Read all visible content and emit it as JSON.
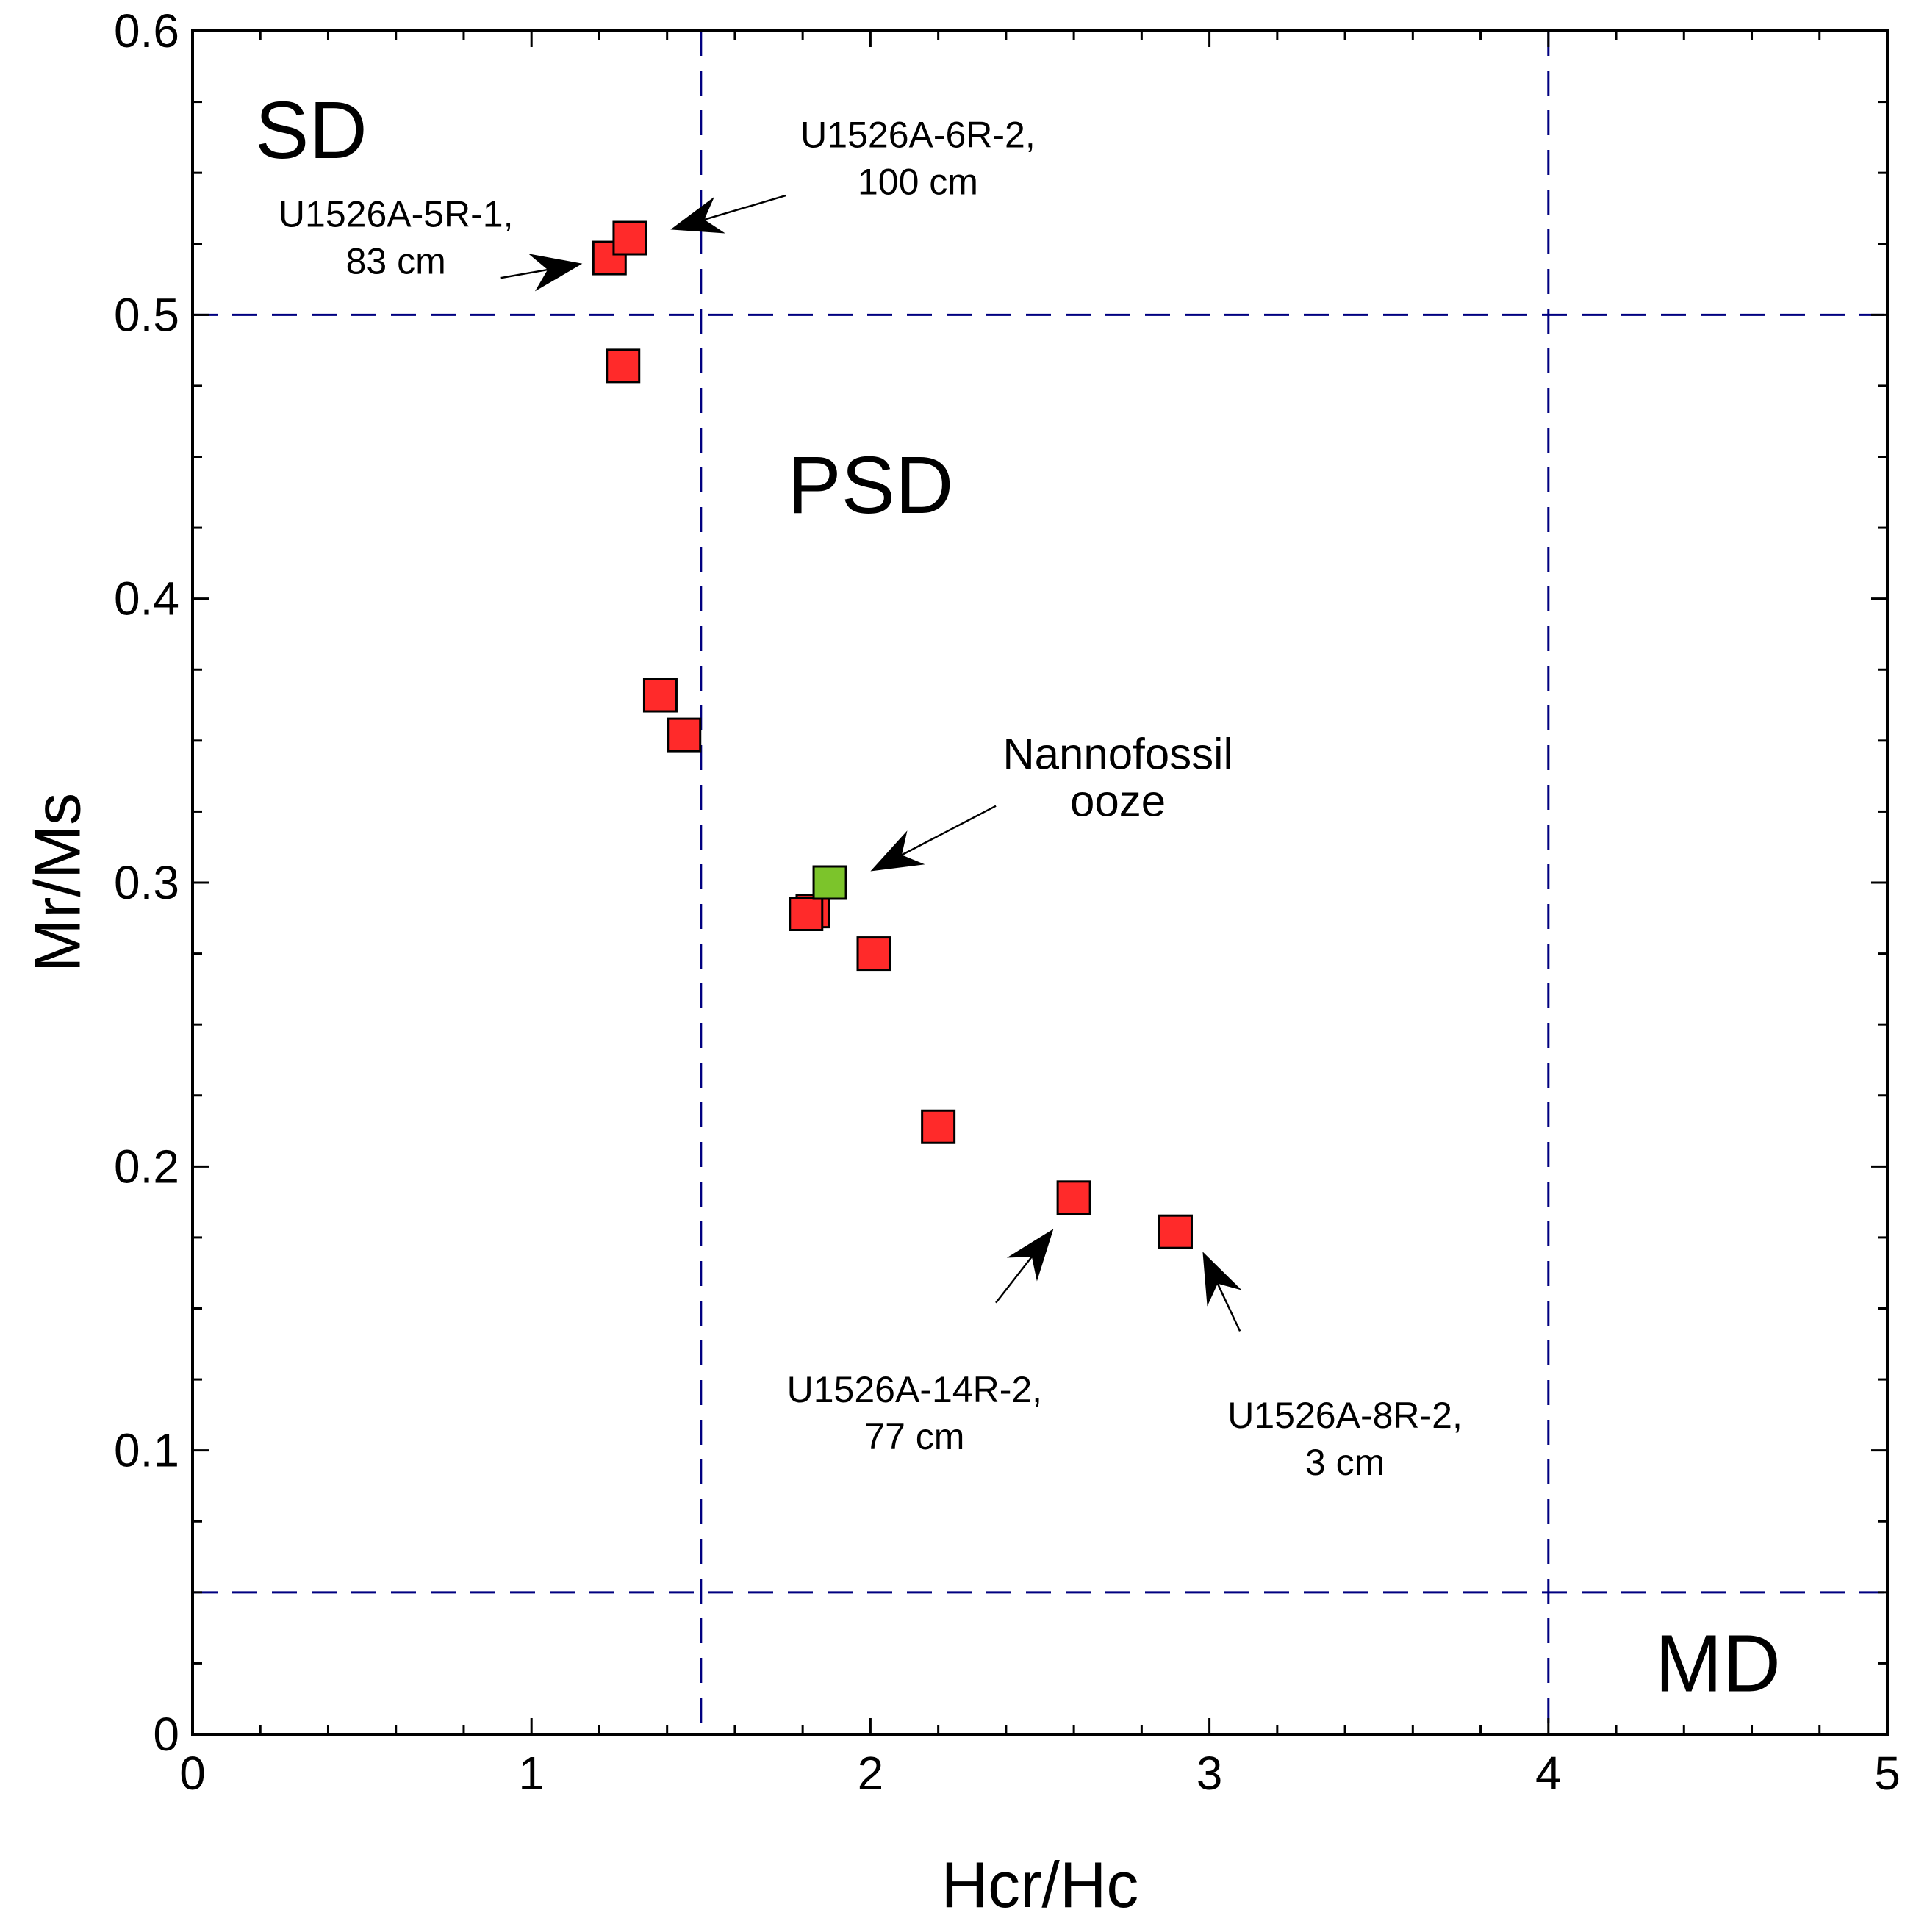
{
  "chart_data": {
    "type": "scatter",
    "xlabel": "Hcr/Hc",
    "ylabel": "Mr/Ms",
    "xlim": [
      0,
      5
    ],
    "ylim": [
      0,
      0.6
    ],
    "x_ticks": [
      "0",
      "1",
      "2",
      "3",
      "4",
      "5"
    ],
    "y_ticks": [
      "0",
      "0.1",
      "0.2",
      "0.3",
      "0.4",
      "0.5",
      "0.6"
    ],
    "reference_lines": {
      "vertical": [
        1.5,
        4.0
      ],
      "horizontal": [
        0.5,
        0.05
      ],
      "color": "#000080",
      "style": "dashed"
    },
    "regions": [
      {
        "label": "SD",
        "x": 0.35,
        "y": 0.565
      },
      {
        "label": "PSD",
        "x": 2.0,
        "y": 0.44
      },
      {
        "label": "MD",
        "x": 4.5,
        "y": 0.025
      }
    ],
    "series": [
      {
        "color": "#ff2a2a",
        "marker": "square",
        "points": [
          {
            "x": 1.23,
            "y": 0.52
          },
          {
            "x": 1.29,
            "y": 0.527
          },
          {
            "x": 1.27,
            "y": 0.482
          },
          {
            "x": 1.38,
            "y": 0.366
          },
          {
            "x": 1.45,
            "y": 0.352
          },
          {
            "x": 1.83,
            "y": 0.29
          },
          {
            "x": 1.81,
            "y": 0.289
          },
          {
            "x": 2.01,
            "y": 0.275
          },
          {
            "x": 2.2,
            "y": 0.214
          },
          {
            "x": 2.6,
            "y": 0.189
          },
          {
            "x": 2.9,
            "y": 0.177
          }
        ]
      },
      {
        "color": "#7cc42b",
        "marker": "square",
        "points": [
          {
            "x": 1.88,
            "y": 0.3
          }
        ]
      }
    ],
    "annotations": [
      {
        "lines": [
          "U1526A-5R-1,",
          "83 cm"
        ],
        "text_x": 0.6,
        "text_y": 0.531,
        "arrow_from": [
          0.91,
          0.513
        ],
        "arrow_to": [
          1.15,
          0.518
        ]
      },
      {
        "lines": [
          "U1526A-6R-2,",
          "100 cm"
        ],
        "text_x": 2.14,
        "text_y": 0.559,
        "arrow_from": [
          1.75,
          0.542
        ],
        "arrow_to": [
          1.41,
          0.53
        ]
      },
      {
        "lines": [
          "Nannofossil",
          "ooze"
        ],
        "text_x": 2.73,
        "text_y": 0.34,
        "arrow_from": [
          2.37,
          0.327
        ],
        "arrow_to": [
          2.0,
          0.304
        ]
      },
      {
        "lines": [
          "U1526A-14R-2,",
          "77 cm"
        ],
        "text_x": 2.13,
        "text_y": 0.117,
        "arrow_from": [
          2.37,
          0.152
        ],
        "arrow_to": [
          2.54,
          0.178
        ]
      },
      {
        "lines": [
          "U1526A-8R-2,",
          "3 cm"
        ],
        "text_x": 3.4,
        "text_y": 0.108,
        "arrow_from": [
          3.09,
          0.142
        ],
        "arrow_to": [
          2.98,
          0.17
        ]
      }
    ]
  }
}
